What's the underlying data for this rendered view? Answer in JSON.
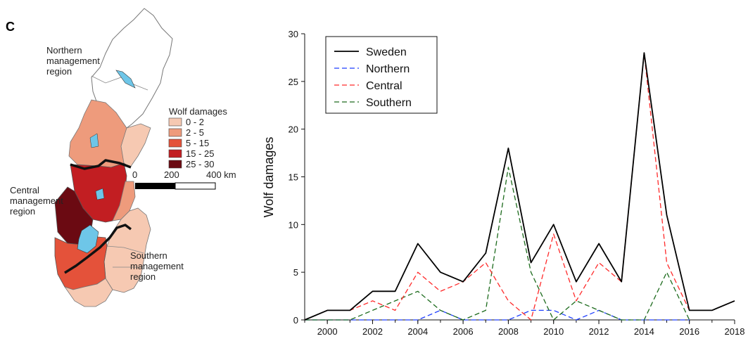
{
  "panel_label": "C",
  "map": {
    "regions": {
      "northern": [
        "Northern",
        "management",
        "region"
      ],
      "central": [
        "Central",
        "management",
        "region"
      ],
      "southern": [
        "Southern",
        "management",
        "region"
      ]
    },
    "legend_title": "Wolf damages",
    "legend_classes": [
      {
        "label": "0 - 2",
        "color": "#f6c9b2"
      },
      {
        "label": "2 - 5",
        "color": "#ee9b7c"
      },
      {
        "label": "5 - 15",
        "color": "#e4523a"
      },
      {
        "label": "15 - 25",
        "color": "#c21e22"
      },
      {
        "label": "25 - 30",
        "color": "#6b0a12"
      }
    ],
    "scalebar": {
      "labels": [
        "0",
        "200",
        "400 km"
      ]
    },
    "colors": {
      "lake": "#6ec6e8",
      "border": "#111111",
      "outline": "#777777"
    }
  },
  "chart_data": {
    "type": "line",
    "x": [
      1999,
      2000,
      2001,
      2002,
      2003,
      2004,
      2005,
      2006,
      2007,
      2008,
      2009,
      2010,
      2011,
      2012,
      2013,
      2014,
      2015,
      2016,
      2017,
      2018
    ],
    "series": [
      {
        "name": "Sweden",
        "color": "#000000",
        "dash": "solid",
        "values": [
          0,
          1,
          1,
          3,
          3,
          8,
          5,
          4,
          7,
          18,
          6,
          10,
          4,
          8,
          4,
          28,
          11,
          1,
          1,
          2
        ]
      },
      {
        "name": "Northern",
        "color": "#1f3fff",
        "dash": "dashed",
        "values": [
          0,
          0,
          0,
          0,
          0,
          0,
          1,
          0,
          0,
          0,
          1,
          1,
          0,
          1,
          0,
          0,
          0,
          0,
          null,
          null
        ]
      },
      {
        "name": "Central",
        "color": "#ff2a2a",
        "dash": "dashed",
        "values": [
          0,
          1,
          1,
          2,
          1,
          5,
          3,
          4,
          6,
          2,
          0,
          9,
          2,
          6,
          4,
          28,
          6,
          1,
          1,
          2
        ]
      },
      {
        "name": "Southern",
        "color": "#1d6b1d",
        "dash": "dashed",
        "values": [
          0,
          0,
          0,
          1,
          2,
          3,
          1,
          0,
          1,
          16,
          5,
          0,
          2,
          1,
          0,
          0,
          5,
          0,
          null,
          null
        ]
      }
    ],
    "xticks": [
      "2000",
      "2002",
      "2004",
      "2006",
      "2008",
      "2010",
      "2012",
      "2014",
      "2016",
      "2018"
    ],
    "yticks": [
      "0",
      "5",
      "10",
      "15",
      "20",
      "25",
      "30"
    ],
    "xlim": [
      1999,
      2018
    ],
    "ylim": [
      0,
      30
    ],
    "xlabel": "",
    "ylabel": "Wolf damages",
    "legend": "top-left",
    "grid": false
  }
}
